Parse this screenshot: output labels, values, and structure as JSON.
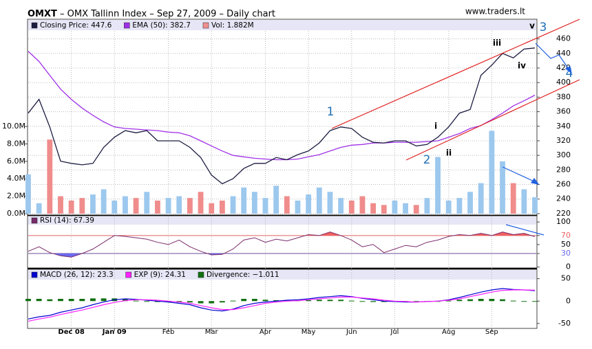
{
  "chart_data": [
    {
      "type": "price",
      "symbol": "OMXT",
      "title": " – OMX Tallinn Index – Sep 27, 2009 – Daily chart",
      "watermark": "www.traders.lt",
      "categories": [
        null,
        null,
        null,
        null,
        "Dec 08",
        null,
        null,
        null,
        "Jan 09",
        null,
        null,
        null,
        null,
        "Feb",
        null,
        null,
        null,
        "Mar",
        null,
        null,
        null,
        null,
        "Apr",
        null,
        null,
        null,
        "May",
        null,
        null,
        null,
        "Jun",
        null,
        null,
        null,
        "Jul",
        null,
        null,
        null,
        null,
        "Aug",
        null,
        null,
        null,
        "Sep",
        null,
        null,
        null,
        null
      ],
      "series": [
        {
          "name": "Closing Price: 447.6",
          "color": "#1b1b40",
          "values": [
            358,
            377,
            339,
            292,
            289,
            287,
            289,
            311,
            325,
            334,
            331,
            334,
            320,
            320,
            320,
            311,
            297,
            273,
            261,
            268,
            282,
            289,
            289,
            297,
            294,
            301,
            306,
            317,
            334,
            339,
            337,
            325,
            318,
            317,
            320,
            320,
            313,
            315,
            325,
            339,
            358,
            363,
            410,
            424,
            440,
            434,
            446,
            447.6
          ]
        },
        {
          "name": "EMA (50): 382.7",
          "color": "#a030e8",
          "values": [
            443,
            429,
            410,
            391,
            377,
            365,
            355,
            346,
            339,
            337,
            336,
            335,
            334,
            332,
            331,
            327,
            320,
            313,
            306,
            300,
            298,
            296,
            295,
            294,
            294,
            295,
            298,
            301,
            306,
            311,
            314,
            315,
            317,
            317,
            318,
            318,
            318,
            319,
            320,
            325,
            330,
            337,
            341,
            349,
            358,
            368,
            375,
            382.7
          ]
        }
      ],
      "volume": {
        "name": "Vol: 1.882M",
        "color": "#f09090",
        "up_color": "#9cc8ee",
        "down_color": "#f08c8c",
        "values": [
          4.5,
          1.2,
          8.5,
          2.0,
          1.5,
          1.8,
          2.2,
          2.8,
          1.5,
          2.0,
          1.8,
          2.5,
          1.5,
          1.8,
          2.0,
          1.8,
          2.5,
          1.2,
          1.5,
          2.0,
          3.0,
          2.5,
          1.8,
          3.2,
          2.0,
          1.5,
          2.2,
          3.0,
          2.5,
          1.8,
          1.5,
          2.0,
          1.2,
          1.0,
          1.5,
          1.2,
          1.0,
          1.8,
          6.5,
          1.5,
          1.8,
          2.5,
          3.5,
          9.5,
          6.0,
          3.5,
          2.8,
          1.882
        ],
        "ylim": [
          0,
          22.3
        ],
        "yticks": [
          {
            "value": 0,
            "label": "0.0M"
          },
          {
            "value": 2,
            "label": "2.0M"
          },
          {
            "value": 4,
            "label": "4.0M"
          },
          {
            "value": 6,
            "label": "6.0M"
          },
          {
            "value": 8,
            "label": "8.0M"
          },
          {
            "value": 10,
            "label": "10.0M"
          }
        ]
      },
      "ylim": [
        219,
        487
      ],
      "yticks": [
        220,
        240,
        260,
        280,
        300,
        320,
        340,
        360,
        380,
        400,
        420,
        440,
        460
      ],
      "grid": true,
      "annotations": [
        {
          "text": "1",
          "color": "#1f6fb5"
        },
        {
          "text": "2",
          "color": "#1f6fb5"
        },
        {
          "text": "3",
          "color": "#1f6fb5"
        },
        {
          "text": "4",
          "color": "#1f6fb5"
        },
        {
          "text": "i",
          "color": "#000000"
        },
        {
          "text": "ii",
          "color": "#000000"
        },
        {
          "text": "iii",
          "color": "#000000"
        },
        {
          "text": "iv",
          "color": "#000000"
        },
        {
          "text": "v",
          "color": "#000000"
        }
      ]
    },
    {
      "type": "rsi",
      "series": [
        {
          "name": "RSI (14): 67.39",
          "color": "#7a2a6a",
          "values": [
            35,
            45,
            32,
            25,
            22,
            30,
            40,
            55,
            70,
            68,
            65,
            62,
            55,
            50,
            60,
            45,
            35,
            27,
            28,
            40,
            60,
            65,
            55,
            62,
            58,
            65,
            72,
            70,
            78,
            70,
            60,
            45,
            50,
            32,
            40,
            48,
            45,
            55,
            60,
            68,
            72,
            70,
            75,
            70,
            78,
            72,
            75,
            67.39
          ]
        }
      ],
      "overbought": 70,
      "oversold": 30,
      "overbought_color": "#f06060",
      "oversold_color": "#6a6af0",
      "ylim": [
        -2,
        114
      ],
      "yticks": [
        0,
        30,
        50,
        70,
        100
      ]
    },
    {
      "type": "macd",
      "series": [
        {
          "name": "MACD (26, 12): 23.3",
          "color": "#0000d0",
          "values": [
            -40,
            -35,
            -32,
            -25,
            -20,
            -15,
            -8,
            -2,
            3,
            5,
            4,
            2,
            0,
            -2,
            -5,
            -8,
            -15,
            -20,
            -22,
            -18,
            -10,
            -5,
            -2,
            0,
            2,
            3,
            5,
            8,
            10,
            12,
            10,
            6,
            3,
            0,
            -1,
            -2,
            -2,
            -1,
            0,
            3,
            8,
            14,
            20,
            25,
            28,
            26,
            25,
            23.3
          ]
        },
        {
          "name": "EXP (9): 24.31",
          "color": "#ff20ff",
          "values": [
            -45,
            -40,
            -36,
            -30,
            -25,
            -20,
            -14,
            -8,
            -3,
            1,
            3,
            3,
            2,
            0,
            -2,
            -5,
            -10,
            -15,
            -19,
            -19,
            -15,
            -10,
            -5,
            -2,
            0,
            1,
            3,
            5,
            7,
            9,
            9,
            7,
            5,
            2,
            0,
            -1,
            -2,
            -1,
            0,
            2,
            5,
            10,
            15,
            20,
            24,
            25,
            25,
            24.31
          ]
        },
        {
          "name": "Divergence: −1.011",
          "color": "#107010",
          "bars": true,
          "values": [
            5,
            5,
            4,
            5,
            5,
            5,
            6,
            6,
            6,
            4,
            1,
            -1,
            -2,
            -2,
            -3,
            -3,
            -5,
            -5,
            -3,
            1,
            5,
            5,
            3,
            2,
            2,
            2,
            2,
            3,
            3,
            3,
            1,
            -1,
            -2,
            -2,
            -1,
            -1,
            0,
            0,
            0,
            1,
            3,
            4,
            5,
            5,
            4,
            1,
            0,
            -1.011
          ]
        }
      ],
      "ylim": [
        -61,
        71
      ],
      "yticks": [
        -50,
        0,
        50
      ]
    }
  ]
}
